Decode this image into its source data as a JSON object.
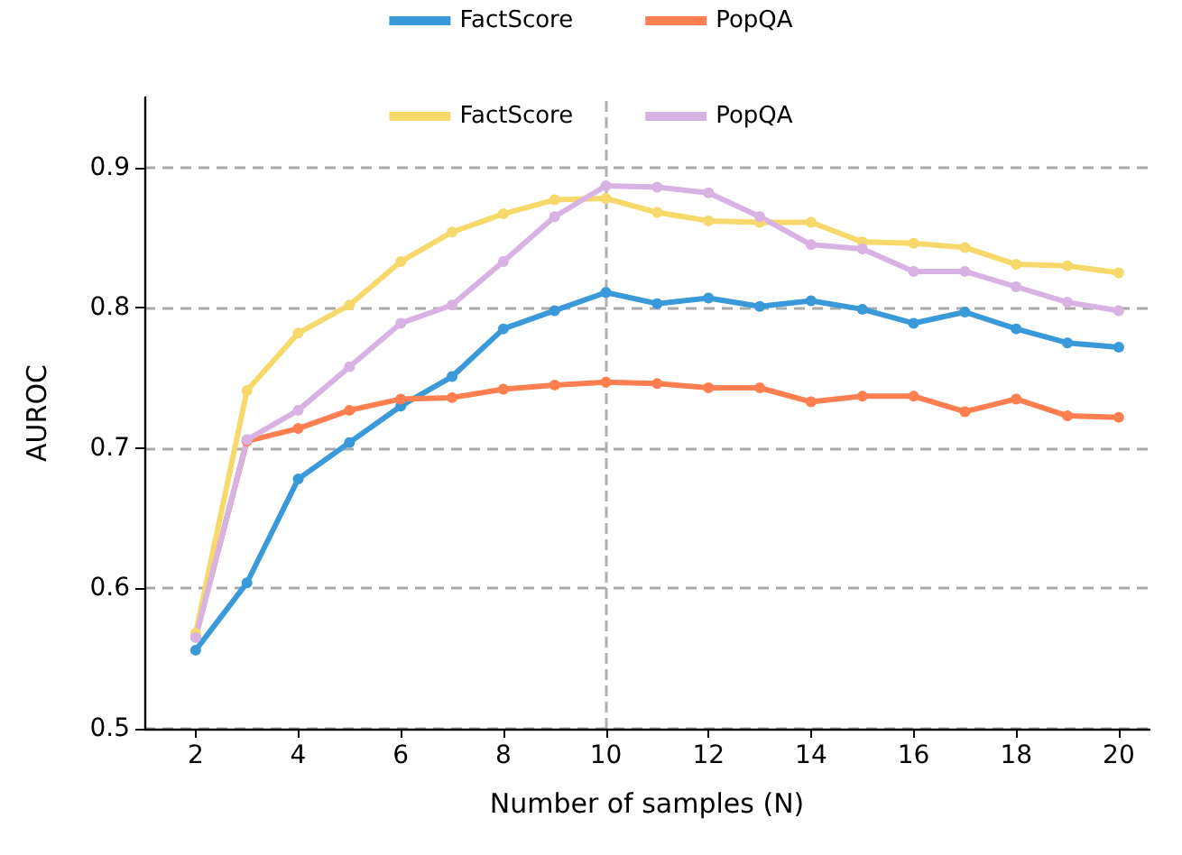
{
  "chart_data": {
    "type": "line",
    "xlabel": "Number of samples (N)",
    "ylabel": "AUROC",
    "x": [
      2,
      3,
      4,
      5,
      6,
      7,
      8,
      9,
      10,
      11,
      12,
      13,
      14,
      15,
      16,
      17,
      18,
      19,
      20
    ],
    "series": [
      {
        "name": "FactScore",
        "color": "#3a9ad9",
        "values": [
          0.556,
          0.604,
          0.678,
          0.704,
          0.73,
          0.751,
          0.785,
          0.798,
          0.811,
          0.803,
          0.807,
          0.801,
          0.805,
          0.799,
          0.789,
          0.797,
          0.785,
          0.775,
          0.772
        ]
      },
      {
        "name": "PopQA",
        "color": "#ff7f50",
        "values": [
          0.566,
          0.705,
          0.714,
          0.727,
          0.735,
          0.736,
          0.742,
          0.745,
          0.747,
          0.746,
          0.743,
          0.743,
          0.733,
          0.737,
          0.737,
          0.726,
          0.735,
          0.723,
          0.722
        ]
      },
      {
        "name": "FactScore",
        "color": "#f7d96b",
        "values": [
          0.568,
          0.741,
          0.782,
          0.802,
          0.833,
          0.854,
          0.867,
          0.877,
          0.878,
          0.868,
          0.862,
          0.861,
          0.861,
          0.847,
          0.846,
          0.843,
          0.831,
          0.83,
          0.825
        ]
      },
      {
        "name": "PopQA",
        "color": "#d8b2e3",
        "values": [
          0.565,
          0.706,
          0.727,
          0.758,
          0.789,
          0.802,
          0.833,
          0.865,
          0.887,
          0.886,
          0.882,
          0.865,
          0.845,
          0.842,
          0.826,
          0.826,
          0.815,
          0.804,
          0.798
        ]
      }
    ],
    "xlim": [
      1,
      20.6
    ],
    "xticks": [
      2,
      4,
      6,
      8,
      10,
      12,
      14,
      16,
      18,
      20
    ],
    "ylim": [
      0.5,
      0.95
    ],
    "yticks": [
      0.5,
      0.6,
      0.7,
      0.8,
      0.9
    ],
    "grid": "y",
    "legend": "top",
    "marker": "circle",
    "line_style": "solid",
    "ref_lines": [
      {
        "axis": "x",
        "value": 10,
        "color": "#b0b0b0",
        "line_style": "dashed"
      }
    ]
  }
}
